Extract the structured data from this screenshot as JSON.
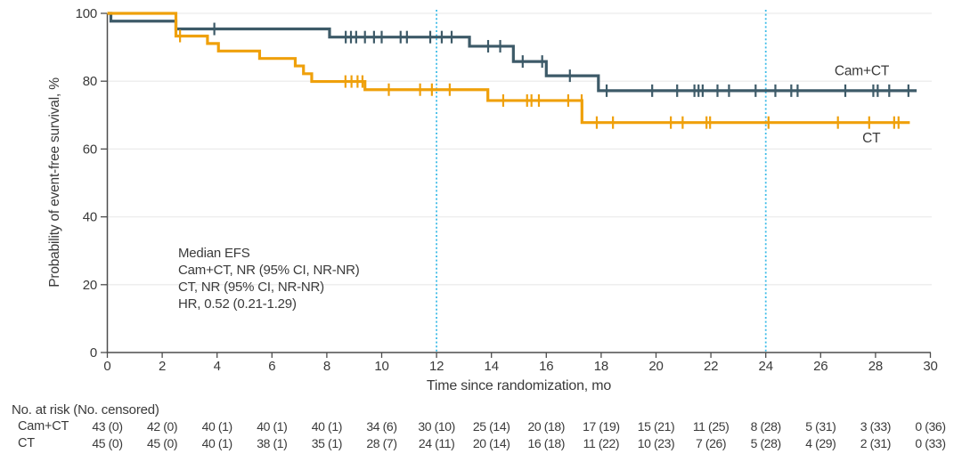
{
  "colors": {
    "cam_ct": "#3D5A68",
    "ct": "#EFA00B",
    "reference_line": "#3FBCE8",
    "gridline": "#ECECEC",
    "axis": "#4D4D4D",
    "text": "#3A3A3A"
  },
  "chart_data": {
    "type": "line",
    "subtype": "kaplan-meier-step",
    "title": "",
    "xlabel": "Time since randomization, mo",
    "ylabel": "Probability of event-free survival, %",
    "xlim": [
      0,
      30
    ],
    "ylim": [
      0,
      100
    ],
    "xticks": [
      0,
      2,
      4,
      6,
      8,
      10,
      12,
      14,
      16,
      18,
      20,
      22,
      24,
      26,
      28,
      30
    ],
    "yticks": [
      0,
      20,
      40,
      60,
      80,
      100
    ],
    "grid": "horizontal-light",
    "reference_lines_x": [
      12,
      24
    ],
    "series": [
      {
        "name": "Cam+CT",
        "steps": [
          [
            0,
            100
          ],
          [
            0.13,
            97.7
          ],
          [
            2.5,
            95.4
          ],
          [
            8.1,
            93.0
          ],
          [
            13.2,
            90.3
          ],
          [
            14.8,
            85.8
          ],
          [
            16.0,
            81.6
          ],
          [
            17.9,
            77.2
          ]
        ],
        "end_x": 29.5,
        "censor_marks": [
          [
            3.9,
            95.4
          ],
          [
            8.69,
            93.0
          ],
          [
            8.88,
            93.0
          ],
          [
            9.07,
            93.0
          ],
          [
            9.39,
            93.0
          ],
          [
            9.72,
            93.0
          ],
          [
            10.0,
            93.0
          ],
          [
            10.69,
            93.0
          ],
          [
            10.92,
            93.0
          ],
          [
            11.77,
            93.0
          ],
          [
            12.19,
            93.0
          ],
          [
            12.55,
            93.0
          ],
          [
            13.88,
            90.3
          ],
          [
            14.32,
            90.3
          ],
          [
            15.14,
            85.8
          ],
          [
            15.85,
            85.8
          ],
          [
            16.86,
            81.6
          ],
          [
            18.2,
            77.2
          ],
          [
            19.86,
            77.2
          ],
          [
            20.77,
            77.2
          ],
          [
            21.4,
            77.2
          ],
          [
            21.55,
            77.2
          ],
          [
            21.7,
            77.2
          ],
          [
            22.24,
            77.2
          ],
          [
            22.66,
            77.2
          ],
          [
            23.63,
            77.2
          ],
          [
            24.35,
            77.2
          ],
          [
            24.93,
            77.2
          ],
          [
            25.16,
            77.2
          ],
          [
            26.9,
            77.2
          ],
          [
            27.92,
            77.2
          ],
          [
            28.08,
            77.2
          ],
          [
            28.5,
            77.2
          ],
          [
            29.2,
            77.2
          ]
        ]
      },
      {
        "name": "CT",
        "steps": [
          [
            0,
            100
          ],
          [
            2.5,
            93.3
          ],
          [
            3.65,
            91.1
          ],
          [
            4.05,
            88.9
          ],
          [
            5.55,
            86.7
          ],
          [
            6.85,
            84.5
          ],
          [
            7.15,
            82.2
          ],
          [
            7.45,
            79.9
          ],
          [
            9.39,
            77.5
          ],
          [
            13.87,
            74.3
          ],
          [
            17.3,
            67.8
          ]
        ],
        "end_x": 29.25,
        "censor_marks": [
          [
            2.65,
            93.3
          ],
          [
            8.68,
            79.9
          ],
          [
            8.9,
            79.9
          ],
          [
            9.12,
            79.9
          ],
          [
            9.3,
            79.9
          ],
          [
            10.26,
            77.5
          ],
          [
            11.4,
            77.5
          ],
          [
            11.83,
            77.5
          ],
          [
            12.48,
            77.5
          ],
          [
            14.43,
            74.3
          ],
          [
            15.3,
            74.3
          ],
          [
            15.46,
            74.3
          ],
          [
            15.73,
            74.3
          ],
          [
            16.8,
            74.3
          ],
          [
            17.29,
            74.3
          ],
          [
            17.84,
            67.8
          ],
          [
            18.43,
            67.8
          ],
          [
            20.54,
            67.8
          ],
          [
            20.97,
            67.8
          ],
          [
            21.84,
            67.8
          ],
          [
            21.97,
            67.8
          ],
          [
            24.1,
            67.8
          ],
          [
            26.63,
            67.8
          ],
          [
            27.77,
            67.8
          ],
          [
            28.68,
            67.8
          ],
          [
            28.84,
            67.8
          ]
        ]
      }
    ],
    "curve_labels": [
      {
        "text": "Cam+CT",
        "x_mo": 27.5,
        "y_val": 81.8
      },
      {
        "text": "CT",
        "x_mo": 27.85,
        "y_val": 62.0
      }
    ],
    "annotation": {
      "lines": [
        "Median EFS",
        "Cam+CT, NR (95% CI, NR-NR)",
        "CT, NR (95% CI, NR-NR)",
        "HR, 0.52 (0.21-1.29)"
      ]
    }
  },
  "risk_table": {
    "header": "No. at risk (No. censored)",
    "time_points": [
      0,
      2,
      4,
      6,
      8,
      10,
      12,
      14,
      16,
      18,
      20,
      22,
      24,
      26,
      28,
      30
    ],
    "rows": [
      {
        "label": "Cam+CT",
        "values": [
          "43 (0)",
          "42 (0)",
          "40 (1)",
          "40 (1)",
          "40 (1)",
          "34 (6)",
          "30 (10)",
          "25 (14)",
          "20 (18)",
          "17 (19)",
          "15 (21)",
          "11 (25)",
          "8 (28)",
          "5 (31)",
          "3 (33)",
          "0 (36)"
        ]
      },
      {
        "label": "CT",
        "values": [
          "45 (0)",
          "45 (0)",
          "40 (1)",
          "38 (1)",
          "35 (1)",
          "28 (7)",
          "24 (11)",
          "20 (14)",
          "16 (18)",
          "11 (22)",
          "10 (23)",
          "7 (26)",
          "5 (28)",
          "4 (29)",
          "2 (31)",
          "0 (33)"
        ]
      }
    ]
  }
}
